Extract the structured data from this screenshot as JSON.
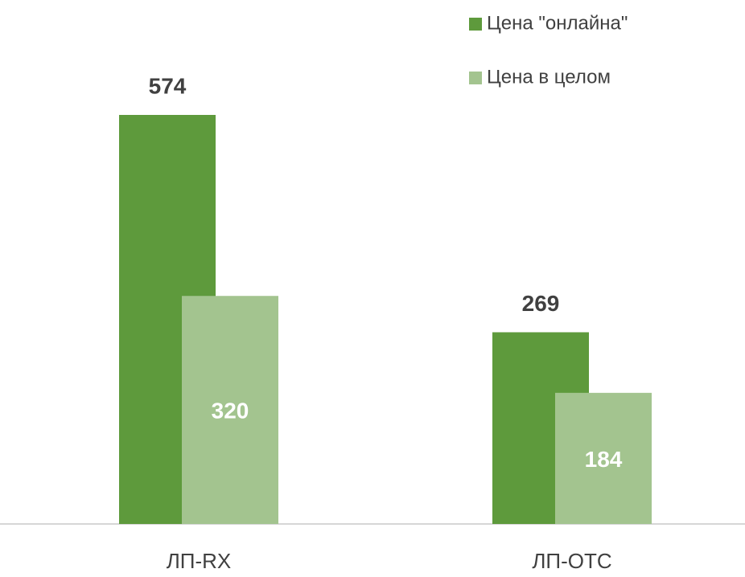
{
  "chart_data": {
    "type": "bar",
    "categories": [
      "ЛП-RX",
      "ЛП-OTC"
    ],
    "series": [
      {
        "name": "Цена \"онлайна\"",
        "color": "#5e9a3c",
        "values": [
          574,
          269
        ]
      },
      {
        "name": "Цена в целом",
        "color": "#a3c48f",
        "values": [
          320,
          184
        ]
      }
    ]
  }
}
